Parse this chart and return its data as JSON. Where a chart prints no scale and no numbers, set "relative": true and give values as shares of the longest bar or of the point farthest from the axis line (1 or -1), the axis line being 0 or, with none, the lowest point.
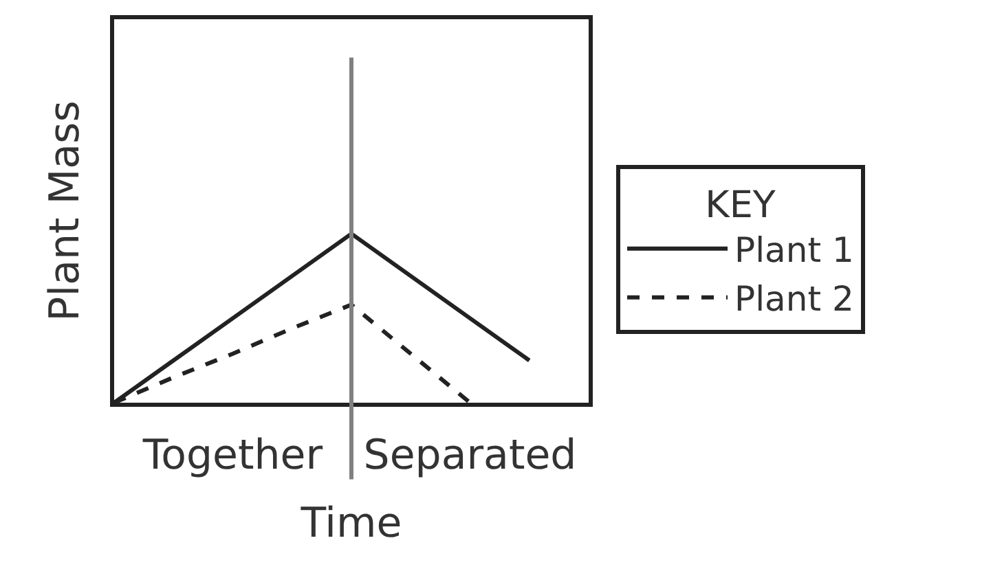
{
  "chart_data": {
    "type": "line",
    "xlabel": "Time",
    "ylabel": "Plant Mass",
    "legend_title": "KEY",
    "relative": true,
    "categories": [
      null,
      null,
      "Together",
      null,
      null,
      null,
      "Separated",
      null,
      null
    ],
    "series": [
      {
        "name": "Plant 1",
        "color": "#222222",
        "line_style": "solid",
        "values": [
          0,
          0.25,
          0.5,
          0.75,
          1,
          0.75,
          0.5,
          0.25,
          null
        ]
      },
      {
        "name": "Plant 2",
        "color": "#222222",
        "line_style": "dashed",
        "values": [
          0,
          0.15,
          0.29,
          0.44,
          0.58,
          0.29,
          0,
          null,
          null
        ]
      }
    ],
    "legend": "right"
  }
}
